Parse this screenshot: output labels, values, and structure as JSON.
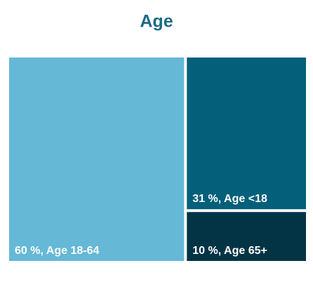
{
  "chart_data": {
    "type": "treemap",
    "title": "Age",
    "values": [
      60,
      31,
      10
    ],
    "value_labels": [
      "60 %, Age 18-64",
      "31 %, Age <18",
      "10 %, Age 65+"
    ],
    "colors": [
      "#65b8d6",
      "#035f7a",
      "#033446"
    ],
    "title_color": "#1d6a86",
    "label_color": "#ffffff"
  }
}
